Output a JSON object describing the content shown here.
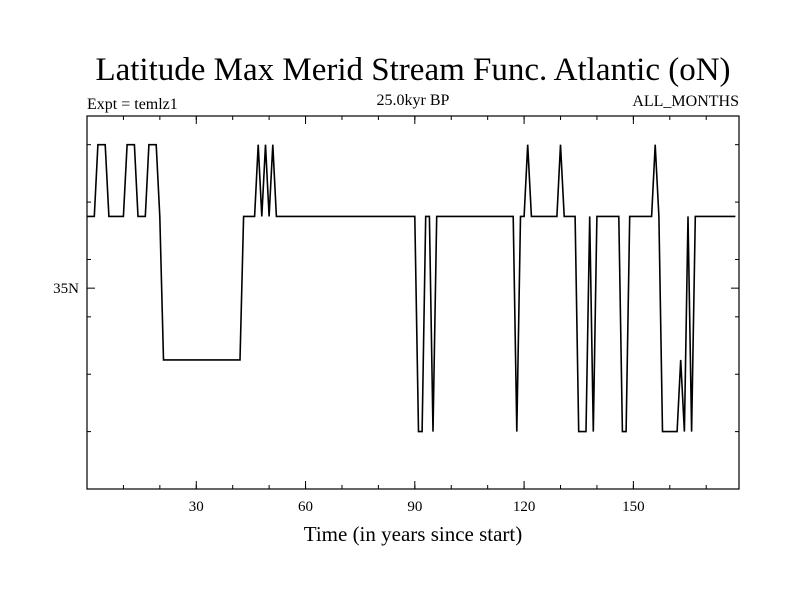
{
  "chart_data": {
    "type": "line",
    "title": "Latitude Max Merid Stream Func. Atlantic (oN)",
    "left_label": "Expt = temlz1",
    "center_label": "25.0kyr BP",
    "right_label": "ALL_MONTHS",
    "xlabel": "Time (in years since start)",
    "ylabel": "",
    "xlim": [
      0,
      179
    ],
    "ylim": [
      28,
      41
    ],
    "x_ticks": [
      30,
      60,
      90,
      120,
      150
    ],
    "x_tick_labels": [
      "30",
      "60",
      "90",
      "120",
      "150"
    ],
    "x_minor_step": 10,
    "y_ticks": [
      30,
      32,
      34,
      36,
      38,
      40
    ],
    "y_labeled_ticks": [
      {
        "value": 35,
        "label": "35N"
      }
    ],
    "grid": false,
    "color": "#000000",
    "series": [
      {
        "x": [
          0,
          2,
          3,
          5,
          6,
          10,
          11,
          13,
          14,
          16,
          17,
          19,
          20,
          21,
          22,
          42,
          43,
          46,
          47,
          48,
          49,
          50,
          51,
          52,
          90,
          91,
          92,
          93,
          94,
          95,
          96,
          117,
          118,
          119,
          120,
          121,
          122,
          129,
          130,
          131,
          134,
          135,
          136,
          137,
          138,
          139,
          140,
          141,
          146,
          147,
          148,
          149,
          150,
          155,
          156,
          157,
          158,
          159,
          162,
          163,
          164,
          165,
          166,
          167,
          168,
          178
        ],
        "y": [
          37.5,
          37.5,
          40,
          40,
          37.5,
          37.5,
          40,
          40,
          37.5,
          37.5,
          40,
          40,
          37.5,
          32.5,
          32.5,
          32.5,
          37.5,
          37.5,
          40,
          37.5,
          40,
          37.5,
          40,
          37.5,
          37.5,
          30,
          30,
          37.5,
          37.5,
          30,
          37.5,
          37.5,
          30,
          37.5,
          37.5,
          40,
          37.5,
          37.5,
          40,
          37.5,
          37.5,
          30,
          30,
          30,
          37.5,
          30,
          37.5,
          37.5,
          37.5,
          30,
          30,
          37.5,
          37.5,
          37.5,
          40,
          37.5,
          30,
          30,
          30,
          32.5,
          30,
          37.5,
          30,
          37.5,
          37.5,
          37.5
        ]
      }
    ]
  }
}
